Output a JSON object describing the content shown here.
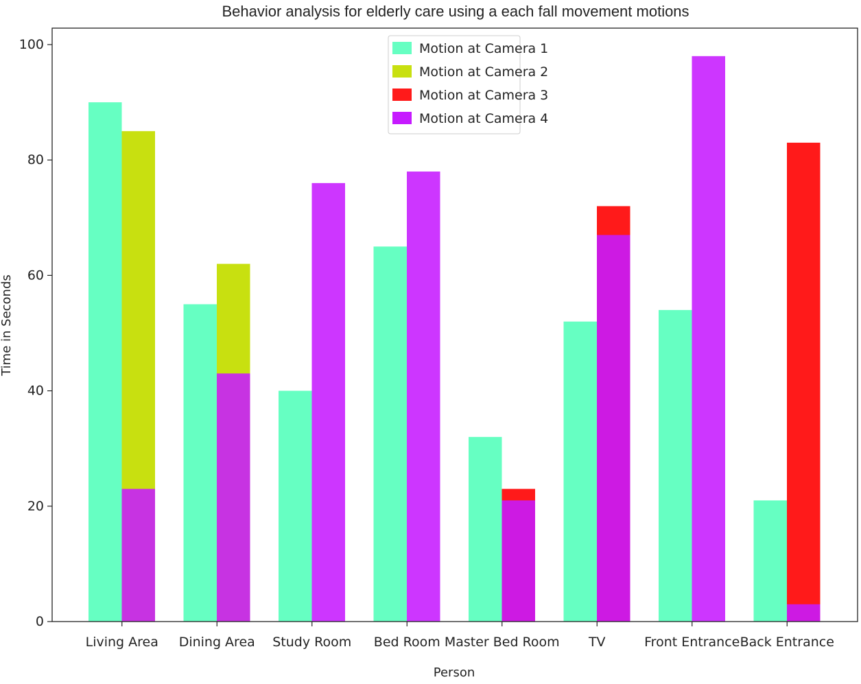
{
  "chart_data": {
    "type": "bar",
    "title": "Behavior analysis for elderly care using a each fall movement motions",
    "xlabel": "Person",
    "ylabel": "Time in Seconds",
    "ylim": [
      0,
      102
    ],
    "yticks": [
      0,
      20,
      40,
      60,
      80,
      100
    ],
    "grid": false,
    "legend_position": "top-center",
    "categories": [
      "Living Area",
      "Dining Area",
      "Study Room",
      "Bed Room",
      "Master Bed Room",
      "TV",
      "Front Entrance",
      "Back Entrance"
    ],
    "series": [
      {
        "name": "Motion at Camera 1",
        "color": "#66ffc2",
        "values": [
          90,
          55,
          40,
          65,
          32,
          52,
          54,
          21
        ]
      },
      {
        "name": "Motion at Camera 2",
        "color": "#c8e010",
        "values": [
          85,
          62,
          0,
          0,
          0,
          0,
          0,
          0
        ]
      },
      {
        "name": "Motion at Camera 3",
        "color": "#ff1a1a",
        "values": [
          0,
          0,
          0,
          0,
          23,
          72,
          0,
          83
        ]
      },
      {
        "name": "Motion at Camera 4",
        "color": "#c61aff",
        "values": [
          23,
          43,
          76,
          78,
          21,
          67,
          98,
          3
        ]
      }
    ]
  }
}
